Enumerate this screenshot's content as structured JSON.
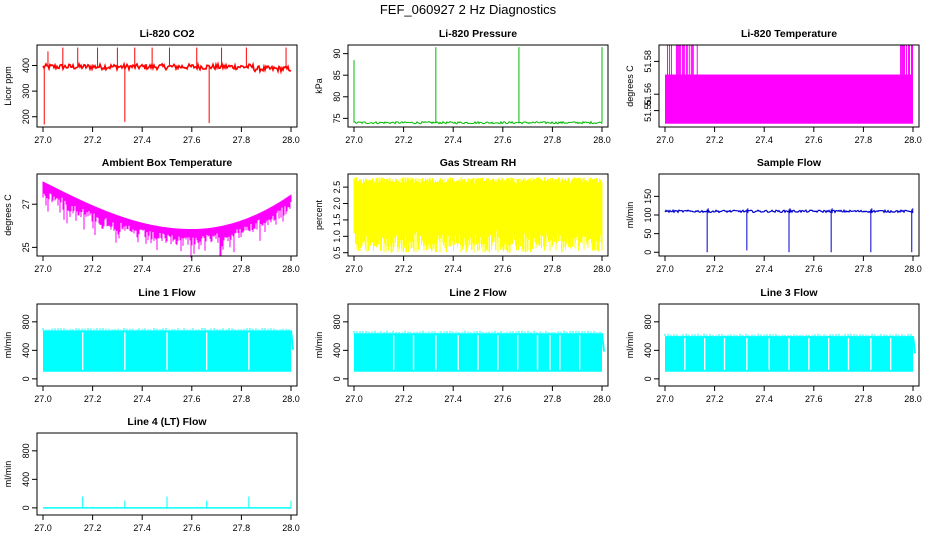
{
  "figure": {
    "title": "FEF_060927  2 Hz Diagnostics"
  },
  "chart_data": [
    {
      "id": "co2",
      "type": "line",
      "title": "Li-820 CO2",
      "ylabel": "Licor ppm",
      "color": "#ff0000",
      "xlim": [
        27.0,
        28.0
      ],
      "ylim": [
        160,
        480
      ],
      "xticks": [
        "27.0",
        "27.2",
        "27.4",
        "27.6",
        "27.8",
        "28.0"
      ],
      "yticks": [
        200,
        300,
        400
      ],
      "pattern": "co2",
      "summary": {
        "baseline": 395,
        "range": [
          350,
          420
        ],
        "spikes": [
          {
            "x": 27.02,
            "y": 455
          },
          {
            "x": 27.08,
            "y": 470
          },
          {
            "x": 27.14,
            "y": 470
          },
          {
            "x": 27.22,
            "y": 470
          },
          {
            "x": 27.3,
            "y": 470
          },
          {
            "x": 27.37,
            "y": 470
          },
          {
            "x": 27.44,
            "y": 470
          },
          {
            "x": 27.51,
            "y": 470
          },
          {
            "x": 27.62,
            "y": 470
          },
          {
            "x": 27.72,
            "y": 470
          },
          {
            "x": 27.82,
            "y": 470
          },
          {
            "x": 27.98,
            "y": 470
          }
        ],
        "dips": [
          {
            "x": 27.005,
            "y": 170
          },
          {
            "x": 27.33,
            "y": 180
          },
          {
            "x": 27.67,
            "y": 175
          }
        ]
      }
    },
    {
      "id": "pressure",
      "type": "line",
      "title": "Li-820 Pressure",
      "ylabel": "kPa",
      "color": "#00bb00",
      "xlim": [
        27.0,
        28.0
      ],
      "ylim": [
        73,
        92
      ],
      "xticks": [
        "27.0",
        "27.2",
        "27.4",
        "27.6",
        "27.8",
        "28.0"
      ],
      "yticks": [
        75,
        80,
        85,
        90
      ],
      "pattern": "pressure",
      "summary": {
        "baseline": 74,
        "spikes": [
          {
            "x": 27.0,
            "y": 88.5
          },
          {
            "x": 27.33,
            "y": 91.5
          },
          {
            "x": 27.665,
            "y": 91.5
          },
          {
            "x": 28.0,
            "y": 91.5
          }
        ]
      }
    },
    {
      "id": "li_temp",
      "type": "area",
      "title": "Li-820 Temperature",
      "ylabel": "degrees C",
      "color": "#ff00ff",
      "xlim": [
        27.0,
        28.0
      ],
      "ylim": [
        51.54,
        51.59
      ],
      "xticks": [
        "27.0",
        "27.2",
        "27.4",
        "27.6",
        "27.8",
        "28.0"
      ],
      "yticks": [
        "51.55",
        "51.56",
        "51.58"
      ],
      "pattern": "litemp",
      "summary": {
        "low": 51.542,
        "high": 51.572,
        "burst_top": 51.59,
        "bursts": [
          [
            27.01,
            27.14
          ],
          [
            27.95,
            28.0
          ]
        ]
      }
    },
    {
      "id": "ambient_temp",
      "type": "area",
      "title": "Ambient Box Temperature",
      "ylabel": "degrees C",
      "color": "#ff00ff",
      "xlim": [
        27.0,
        28.0
      ],
      "ylim": [
        24.6,
        28.4
      ],
      "xticks": [
        "27.0",
        "27.2",
        "27.4",
        "27.6",
        "27.8",
        "28.0"
      ],
      "yticks": [
        25,
        27
      ],
      "pattern": "ambient",
      "summary": {
        "start": 28.0,
        "minimum": {
          "x": 27.6,
          "y": 25.8
        },
        "end": 27.4
      }
    },
    {
      "id": "gas_rh",
      "type": "area",
      "title": "Gas Stream RH",
      "ylabel": "percent",
      "color": "#ffff00",
      "xlim": [
        27.0,
        28.0
      ],
      "ylim": [
        0.4,
        2.9
      ],
      "xticks": [
        "27.0",
        "27.2",
        "27.4",
        "27.6",
        "27.8",
        "28.0"
      ],
      "yticks": [
        "0.5",
        "1.0",
        "1.5",
        "2.0",
        "2.5"
      ],
      "pattern": "rh",
      "summary": {
        "range": [
          0.5,
          2.8
        ]
      }
    },
    {
      "id": "sample_flow",
      "type": "line",
      "title": "Sample Flow",
      "ylabel": "ml/min",
      "color": "#0000cc",
      "xlim": [
        27.0,
        28.0
      ],
      "ylim": [
        -10,
        210
      ],
      "xticks": [
        "27.0",
        "27.2",
        "27.4",
        "27.6",
        "27.8",
        "28.0"
      ],
      "yticks": [
        0,
        50,
        100,
        150
      ],
      "pattern": "sample",
      "summary": {
        "baseline": 110,
        "dips": [
          {
            "x": 27.17,
            "y": 0
          },
          {
            "x": 27.33,
            "y": 5
          },
          {
            "x": 27.5,
            "y": 0
          },
          {
            "x": 27.67,
            "y": 0
          },
          {
            "x": 27.83,
            "y": 0
          },
          {
            "x": 27.995,
            "y": 0
          }
        ]
      }
    },
    {
      "id": "line1_flow",
      "type": "area",
      "title": "Line 1 Flow",
      "ylabel": "ml/min",
      "color": "#00ffff",
      "xlim": [
        27.0,
        28.0
      ],
      "ylim": [
        -100,
        1050
      ],
      "xticks": [
        "27.0",
        "27.2",
        "27.4",
        "27.6",
        "27.8",
        "28.0"
      ],
      "yticks": [
        0,
        400,
        800
      ],
      "pattern": "flowband",
      "summary": {
        "low": 100,
        "high": 680,
        "gaps": [
          27.16,
          27.33,
          27.5,
          27.66,
          27.83
        ]
      }
    },
    {
      "id": "line2_flow",
      "type": "area",
      "title": "Line 2 Flow",
      "ylabel": "ml/min",
      "color": "#00ffff",
      "xlim": [
        27.0,
        28.0
      ],
      "ylim": [
        -100,
        1050
      ],
      "xticks": [
        "27.0",
        "27.2",
        "27.4",
        "27.6",
        "27.8",
        "28.0"
      ],
      "yticks": [
        0,
        400,
        800
      ],
      "pattern": "flowband",
      "summary": {
        "low": 100,
        "high": 640,
        "gaps": [
          27.16,
          27.24,
          27.33,
          27.42,
          27.5,
          27.58,
          27.66,
          27.74,
          27.79,
          27.83,
          27.91
        ]
      }
    },
    {
      "id": "line3_flow",
      "type": "area",
      "title": "Line 3 Flow",
      "ylabel": "ml/min",
      "color": "#00ffff",
      "xlim": [
        27.0,
        28.0
      ],
      "ylim": [
        -100,
        1050
      ],
      "xticks": [
        "27.0",
        "27.2",
        "27.4",
        "27.6",
        "27.8",
        "28.0"
      ],
      "yticks": [
        0,
        400,
        800
      ],
      "pattern": "flowband",
      "summary": {
        "low": 100,
        "high": 600,
        "gaps": [
          27.08,
          27.16,
          27.24,
          27.33,
          27.42,
          27.5,
          27.58,
          27.66,
          27.74,
          27.83,
          27.91
        ]
      }
    },
    {
      "id": "line4_flow",
      "type": "line",
      "title": "Line 4 (LT) Flow",
      "ylabel": "ml/min",
      "color": "#00ffff",
      "xlim": [
        27.0,
        28.0
      ],
      "ylim": [
        -100,
        1050
      ],
      "xticks": [
        "27.0",
        "27.2",
        "27.4",
        "27.6",
        "27.8",
        "28.0"
      ],
      "yticks": [
        0,
        400,
        800
      ],
      "pattern": "line4",
      "summary": {
        "baseline": 0,
        "spikes": [
          {
            "x": 27.16,
            "y": 160
          },
          {
            "x": 27.33,
            "y": 100
          },
          {
            "x": 27.5,
            "y": 160
          },
          {
            "x": 27.66,
            "y": 100
          },
          {
            "x": 27.83,
            "y": 160
          },
          {
            "x": 28.0,
            "y": 100
          }
        ]
      }
    }
  ]
}
